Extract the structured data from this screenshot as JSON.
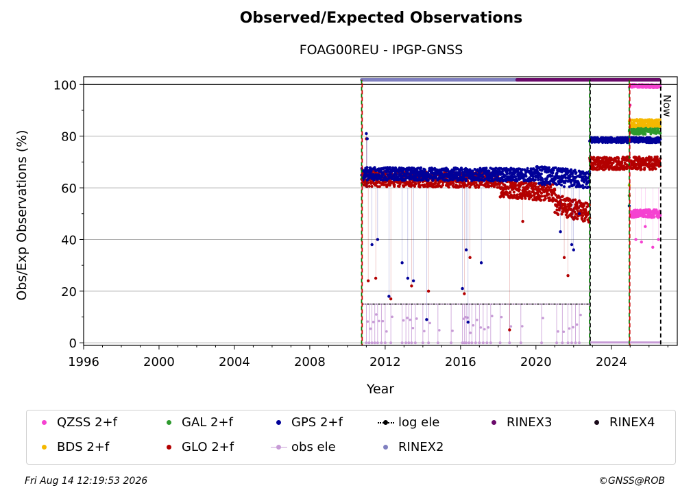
{
  "title": "Observed/Expected Observations",
  "subtitle": "FOAG00REU - IPGP-GNSS",
  "footer": {
    "date": "Fri Aug 14 12:19:53 2026",
    "credit": "©GNSS@ROB"
  },
  "annotation_now": "Now",
  "colors": {
    "qzss": "#f542d1",
    "bds": "#f5b800",
    "gal": "#2e9a2e",
    "glo": "#b30000",
    "gps": "#000099",
    "obs_ele": "#c79bd6",
    "log_ele": "#000000",
    "rinex2": "#8080c0",
    "rinex3": "#6a0a6a",
    "rinex4": "#1a0a1a",
    "event_green": "#008000",
    "event_red": "#cc0000"
  },
  "legend": [
    {
      "label": "QZSS 2+f",
      "key": "qzss",
      "style": "dot"
    },
    {
      "label": "GAL 2+f",
      "key": "gal",
      "style": "dot"
    },
    {
      "label": "GPS 2+f",
      "key": "gps",
      "style": "dot"
    },
    {
      "label": "log ele",
      "key": "log_ele",
      "style": "dashdot"
    },
    {
      "label": "RINEX3",
      "key": "rinex3",
      "style": "dot"
    },
    {
      "label": "RINEX4",
      "key": "rinex4",
      "style": "dot"
    },
    {
      "label": "BDS 2+f",
      "key": "bds",
      "style": "dot"
    },
    {
      "label": "GLO 2+f",
      "key": "glo",
      "style": "dot"
    },
    {
      "label": "obs ele",
      "key": "obs_ele",
      "style": "linedot"
    },
    {
      "label": "RINEX2",
      "key": "rinex2",
      "style": "dot"
    }
  ],
  "chart_data": {
    "type": "scatter",
    "title": "Observed/Expected Observations",
    "subtitle": "FOAG00REU - IPGP-GNSS",
    "xlabel": "Year",
    "ylabel": "Obs/Exp Observations (%)",
    "xlim": [
      1996,
      2027.5
    ],
    "ylim": [
      -1,
      103
    ],
    "xticks": [
      1996,
      2000,
      2004,
      2008,
      2012,
      2016,
      2020,
      2024
    ],
    "yticks": [
      0,
      20,
      40,
      60,
      80,
      100
    ],
    "grid": "horizontal",
    "legend_position": "below",
    "event_lines": [
      {
        "x": 2010.75,
        "colors": [
          "event_green",
          "event_red"
        ]
      },
      {
        "x": 2022.85,
        "colors": [
          "event_green",
          "log_ele"
        ]
      },
      {
        "x": 2024.95,
        "colors": [
          "event_green",
          "event_red"
        ]
      },
      {
        "x": 2026.62,
        "colors": [
          "log_ele"
        ],
        "label": "Now"
      }
    ],
    "rinex_bars": [
      {
        "name": "RINEX2",
        "key": "rinex2",
        "x_start": 2010.75,
        "x_end": 2019.0,
        "y": 101.8
      },
      {
        "name": "RINEX3",
        "key": "rinex3",
        "x_start": 2019.0,
        "x_end": 2026.55,
        "y": 101.8
      }
    ],
    "series": [
      {
        "name": "GPS 2+f",
        "key": "gps",
        "segments": [
          {
            "x_start": 2010.75,
            "x_end": 2020.0,
            "y_start": 65.5,
            "y_end": 65.0,
            "spread": 2.5
          },
          {
            "x_start": 2020.0,
            "x_end": 2022.85,
            "y_start": 65.0,
            "y_end": 63.0,
            "spread": 3.5
          },
          {
            "x_start": 2022.85,
            "x_end": 2026.6,
            "y_start": 78.5,
            "y_end": 78.5,
            "spread": 1.0
          }
        ],
        "outliers": [
          [
            2011.0,
            81
          ],
          [
            2011.05,
            79
          ],
          [
            2011.3,
            38
          ],
          [
            2011.6,
            40
          ],
          [
            2012.2,
            18
          ],
          [
            2012.9,
            31
          ],
          [
            2013.2,
            25
          ],
          [
            2013.5,
            24
          ],
          [
            2014.2,
            9
          ],
          [
            2016.1,
            21
          ],
          [
            2016.3,
            36
          ],
          [
            2016.4,
            8
          ],
          [
            2017.1,
            31
          ],
          [
            2021.3,
            43
          ],
          [
            2021.9,
            38
          ],
          [
            2022.0,
            36
          ],
          [
            2022.3,
            50
          ],
          [
            2024.95,
            53
          ]
        ]
      },
      {
        "name": "GLO 2+f",
        "key": "glo",
        "segments": [
          {
            "x_start": 2010.75,
            "x_end": 2018.0,
            "y_start": 63.5,
            "y_end": 63.0,
            "spread": 3.0
          },
          {
            "x_start": 2018.0,
            "x_end": 2021.0,
            "y_start": 60.0,
            "y_end": 58.0,
            "spread": 3.5
          },
          {
            "x_start": 2021.0,
            "x_end": 2022.85,
            "y_start": 54.0,
            "y_end": 50.0,
            "spread": 4.0
          },
          {
            "x_start": 2022.85,
            "x_end": 2026.6,
            "y_start": 69.5,
            "y_end": 69.5,
            "spread": 2.5
          }
        ],
        "outliers": [
          [
            2011.0,
            79
          ],
          [
            2011.1,
            24
          ],
          [
            2011.5,
            25
          ],
          [
            2012.3,
            17
          ],
          [
            2013.4,
            22
          ],
          [
            2014.3,
            20
          ],
          [
            2016.2,
            19
          ],
          [
            2016.5,
            33
          ],
          [
            2018.6,
            5
          ],
          [
            2019.3,
            47
          ],
          [
            2021.5,
            33
          ],
          [
            2021.7,
            26
          ]
        ]
      },
      {
        "name": "GAL 2+f",
        "key": "gal",
        "segments": [
          {
            "x_start": 2024.95,
            "x_end": 2026.6,
            "y_start": 82.0,
            "y_end": 82.5,
            "spread": 1.5
          }
        ],
        "outliers": [
          [
            2024.95,
            57
          ]
        ]
      },
      {
        "name": "BDS 2+f",
        "key": "bds",
        "segments": [
          {
            "x_start": 2024.95,
            "x_end": 2026.6,
            "y_start": 85.0,
            "y_end": 85.0,
            "spread": 1.5
          }
        ],
        "outliers": [
          [
            2024.95,
            61
          ]
        ]
      },
      {
        "name": "QZSS 2+f",
        "key": "qzss",
        "segments": [
          {
            "x_start": 2024.95,
            "x_end": 2026.6,
            "y_start": 99.5,
            "y_end": 99.3,
            "spread": 0.6
          },
          {
            "x_start": 2025.0,
            "x_end": 2026.6,
            "y_start": 50.0,
            "y_end": 50.0,
            "spread": 1.5
          }
        ],
        "outliers": [
          [
            2025.3,
            40
          ],
          [
            2025.6,
            39
          ],
          [
            2025.8,
            45
          ],
          [
            2026.2,
            37
          ],
          [
            2026.5,
            40
          ],
          [
            2025.0,
            92
          ]
        ]
      },
      {
        "name": "obs ele",
        "key": "obs_ele",
        "level": 15,
        "x_start": 2010.75,
        "x_end": 2022.85,
        "drops": [
          2011.0,
          2011.15,
          2011.3,
          2011.45,
          2011.6,
          2011.8,
          2012.0,
          2012.3,
          2012.9,
          2013.1,
          2013.25,
          2013.4,
          2013.6,
          2014.0,
          2014.3,
          2014.8,
          2015.5,
          2016.1,
          2016.2,
          2016.3,
          2016.45,
          2016.6,
          2016.8,
          2017.0,
          2017.2,
          2017.4,
          2017.6,
          2018.1,
          2018.6,
          2019.2,
          2020.3,
          2021.1,
          2021.4,
          2021.7,
          2021.9,
          2022.1,
          2022.3
        ]
      },
      {
        "name": "log ele",
        "key": "log_ele",
        "segments": [
          {
            "x_start": 2010.75,
            "x_end": 2022.85,
            "y": 15
          },
          {
            "x_start": 2022.85,
            "x_end": 2026.6,
            "y": 0
          }
        ]
      }
    ]
  }
}
